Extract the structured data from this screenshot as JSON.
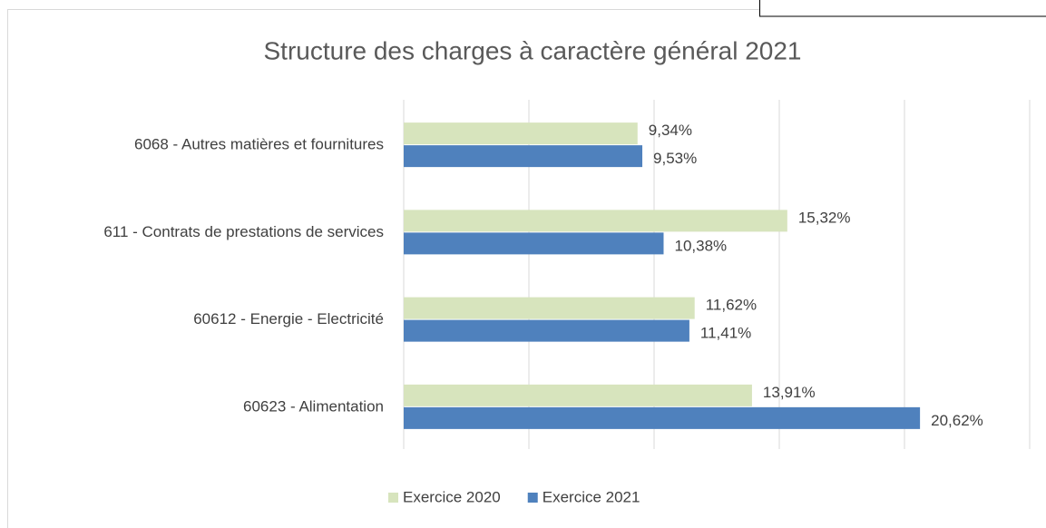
{
  "chart_data": {
    "type": "hbar",
    "title": "Structure des charges à caractère général 2021",
    "categories": [
      "6068 - Autres matières et fournitures",
      "611 - Contrats de prestations de services",
      "60612 - Energie - Electricité",
      "60623 - Alimentation"
    ],
    "series": [
      {
        "name": "Exercice 2020",
        "color": "#d7e4bd",
        "values": [
          9.34,
          15.32,
          11.62,
          13.91
        ],
        "value_labels": [
          "9,34%",
          "15,32%",
          "11,62%",
          "13,91%"
        ]
      },
      {
        "name": "Exercice 2021",
        "color": "#4f81bd",
        "values": [
          9.53,
          10.38,
          11.41,
          20.62
        ],
        "value_labels": [
          "9,53%",
          "10,38%",
          "11,41%",
          "20,62%"
        ]
      }
    ],
    "xlim": [
      0,
      25
    ],
    "xticks": [
      0,
      5,
      10,
      15,
      20,
      25
    ],
    "grid": true,
    "legend": "bottom"
  }
}
